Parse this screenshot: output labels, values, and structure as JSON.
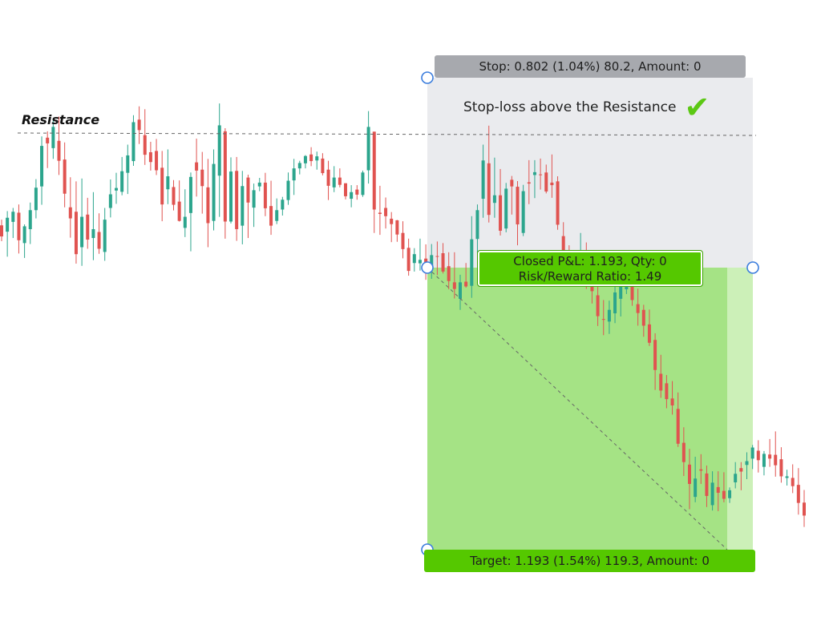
{
  "chart_data": {
    "type": "candlestick",
    "price_range": [
      1.08,
      1.28
    ],
    "colors": {
      "up": "#2ca58d",
      "down": "#e05350",
      "profit_zone": "#8edc66",
      "stop_zone": "#e6e7ea",
      "label_green": "#55c800"
    },
    "annotations": {
      "resistance_label": "Resistance",
      "note_text": "Stop-loss above the Resistance",
      "note_icon": "checkmark-icon",
      "stop_label": "Stop: 0.802 (1.04%) 80.2, Amount: 0",
      "pnl_label_line1": "Closed P&L: 1.193, Qty: 0",
      "pnl_label_line2": "Risk/Reward Ratio: 1.49",
      "target_label": "Target: 1.193 (1.54%) 119.3, Amount: 0"
    },
    "levels": {
      "resistance": 1.2424,
      "stop": 1.2476,
      "entry": 1.2184,
      "target": 1.1216
    },
    "candles": [
      [
        1.2088,
        1.2106,
        1.2038,
        1.2053
      ],
      [
        1.2068,
        1.2133,
        1.1989,
        1.2112
      ],
      [
        1.2099,
        1.2143,
        1.2048,
        1.2131
      ],
      [
        1.2128,
        1.2154,
        1.1999,
        1.2041
      ],
      [
        1.2032,
        1.2091,
        1.1985,
        1.2085
      ],
      [
        1.2076,
        1.216,
        1.2029,
        1.2136
      ],
      [
        1.2136,
        1.2234,
        1.211,
        1.2207
      ],
      [
        1.2211,
        1.2369,
        1.2153,
        1.2339
      ],
      [
        1.2365,
        1.2385,
        1.2269,
        1.2347
      ],
      [
        1.2332,
        1.2424,
        1.2298,
        1.2399
      ],
      [
        1.2355,
        1.2432,
        1.2247,
        1.2292
      ],
      [
        1.2296,
        1.235,
        1.2145,
        1.2188
      ],
      [
        1.2145,
        1.224,
        1.2049,
        1.211
      ],
      [
        1.2131,
        1.2227,
        1.1967,
        1.1997
      ],
      [
        1.2019,
        1.2236,
        1.196,
        1.2115
      ],
      [
        1.2122,
        1.2175,
        1.2014,
        1.2043
      ],
      [
        1.2048,
        1.2193,
        1.1978,
        1.2076
      ],
      [
        1.2067,
        1.2126,
        1.1998,
        1.2014
      ],
      [
        1.2004,
        1.2143,
        1.1976,
        1.2106
      ],
      [
        1.2143,
        1.2233,
        1.2113,
        1.2186
      ],
      [
        1.2198,
        1.2254,
        1.2156,
        1.2206
      ],
      [
        1.2194,
        1.2304,
        1.2183,
        1.2259
      ],
      [
        1.2254,
        1.2343,
        1.2187,
        1.2309
      ],
      [
        1.2291,
        1.2436,
        1.2276,
        1.2414
      ],
      [
        1.2422,
        1.2464,
        1.2345,
        1.2389
      ],
      [
        1.2373,
        1.2455,
        1.2279,
        1.2311
      ],
      [
        1.2319,
        1.2352,
        1.2261,
        1.2288
      ],
      [
        1.2323,
        1.2361,
        1.2247,
        1.2262
      ],
      [
        1.227,
        1.2323,
        1.2101,
        1.2154
      ],
      [
        1.2202,
        1.2328,
        1.2155,
        1.2243
      ],
      [
        1.2209,
        1.2231,
        1.2135,
        1.2153
      ],
      [
        1.2163,
        1.223,
        1.21,
        1.2102
      ],
      [
        1.208,
        1.2202,
        1.2051,
        1.2115
      ],
      [
        1.2127,
        1.2255,
        1.2006,
        1.2241
      ],
      [
        1.2287,
        1.2362,
        1.2179,
        1.2261
      ],
      [
        1.2264,
        1.232,
        1.2125,
        1.2212
      ],
      [
        1.2208,
        1.2298,
        1.2019,
        1.2095
      ],
      [
        1.2102,
        1.2328,
        1.2072,
        1.2282
      ],
      [
        1.2245,
        1.2473,
        1.2115,
        1.2404
      ],
      [
        1.2385,
        1.2395,
        1.2046,
        1.21
      ],
      [
        1.21,
        1.2303,
        1.2094,
        1.2258
      ],
      [
        1.226,
        1.2304,
        1.2039,
        1.2076
      ],
      [
        1.2087,
        1.226,
        1.2028,
        1.2212
      ],
      [
        1.2239,
        1.2248,
        1.2048,
        1.216
      ],
      [
        1.2144,
        1.222,
        1.2083,
        1.2199
      ],
      [
        1.2211,
        1.2238,
        1.2196,
        1.2223
      ],
      [
        1.2223,
        1.2254,
        1.2117,
        1.2142
      ],
      [
        1.2149,
        1.2229,
        1.2058,
        1.2087
      ],
      [
        1.2102,
        1.2173,
        1.2092,
        1.2136
      ],
      [
        1.2138,
        1.2178,
        1.2119,
        1.2169
      ],
      [
        1.2168,
        1.2255,
        1.2153,
        1.2229
      ],
      [
        1.223,
        1.2298,
        1.2184,
        1.2268
      ],
      [
        1.2268,
        1.2292,
        1.2249,
        1.2285
      ],
      [
        1.2284,
        1.231,
        1.2268,
        1.2307
      ],
      [
        1.2312,
        1.2335,
        1.2275,
        1.2291
      ],
      [
        1.2293,
        1.2321,
        1.2264,
        1.2306
      ],
      [
        1.2299,
        1.2316,
        1.2246,
        1.2253
      ],
      [
        1.2264,
        1.2292,
        1.2168,
        1.2213
      ],
      [
        1.2208,
        1.2275,
        1.2193,
        1.2239
      ],
      [
        1.2239,
        1.2268,
        1.2208,
        1.2216
      ],
      [
        1.2221,
        1.2221,
        1.217,
        1.218
      ],
      [
        1.2172,
        1.2215,
        1.2145,
        1.2193
      ],
      [
        1.2201,
        1.2215,
        1.2169,
        1.2185
      ],
      [
        1.2184,
        1.2261,
        1.2178,
        1.2255
      ],
      [
        1.2262,
        1.2449,
        1.222,
        1.2399
      ],
      [
        1.2384,
        1.2384,
        1.2064,
        1.2138
      ],
      [
        1.2128,
        1.2213,
        1.2058,
        1.2124
      ],
      [
        1.2143,
        1.2176,
        1.2078,
        1.2117
      ],
      [
        1.2109,
        1.213,
        1.2035,
        1.2092
      ],
      [
        1.2104,
        1.2105,
        1.2036,
        1.2059
      ],
      [
        1.2064,
        1.2101,
        1.1984,
        1.2013
      ],
      [
        1.2017,
        1.2046,
        1.1929,
        1.1944
      ],
      [
        1.1969,
        1.2016,
        1.1942,
        1.1997
      ],
      [
        1.1968,
        1.2046,
        1.1945,
        1.1979
      ],
      [
        1.1983,
        1.2028,
        1.1916,
        1.1961
      ],
      [
        1.196,
        1.2029,
        1.1919,
        1.1994
      ],
      [
        1.1991,
        1.2037,
        1.1931,
        1.199
      ],
      [
        1.2,
        1.2032,
        1.1936,
        1.1942
      ],
      [
        1.1959,
        1.2003,
        1.1886,
        1.1912
      ],
      [
        1.1908,
        1.2003,
        1.1857,
        1.1887
      ],
      [
        1.1856,
        1.1932,
        1.1821,
        1.1908
      ],
      [
        1.191,
        1.1969,
        1.1891,
        1.1895
      ],
      [
        1.1897,
        1.2117,
        1.1859,
        1.2044
      ],
      [
        1.2045,
        1.2154,
        1.2,
        1.2136
      ],
      [
        1.2172,
        1.2343,
        1.2112,
        1.2293
      ],
      [
        1.2284,
        1.2403,
        1.2097,
        1.2121
      ],
      [
        1.2159,
        1.2302,
        1.2112,
        1.2183
      ],
      [
        1.2183,
        1.2266,
        1.2056,
        1.2071
      ],
      [
        1.2078,
        1.2222,
        1.2066,
        1.2204
      ],
      [
        1.2232,
        1.2244,
        1.2122,
        1.2211
      ],
      [
        1.221,
        1.2228,
        1.2025,
        1.2091
      ],
      [
        1.2064,
        1.2216,
        1.2054,
        1.2196
      ],
      [
        1.2224,
        1.2294,
        1.2155,
        1.222
      ],
      [
        1.2247,
        1.2294,
        1.2174,
        1.2256
      ],
      [
        1.2249,
        1.2299,
        1.2201,
        1.2247
      ],
      [
        1.2255,
        1.228,
        1.2189,
        1.2195
      ],
      [
        1.2223,
        1.2312,
        1.2175,
        1.2215
      ],
      [
        1.2227,
        1.2243,
        1.2074,
        1.209
      ],
      [
        1.2054,
        1.2098,
        1.1957,
        1.1986
      ],
      [
        1.2001,
        1.2025,
        1.1917,
        1.1948
      ],
      [
        1.1956,
        1.2005,
        1.1942,
        1.1979
      ],
      [
        1.1991,
        1.2064,
        1.1946,
        1.1995
      ],
      [
        1.2004,
        1.2034,
        1.1887,
        1.1927
      ],
      [
        1.192,
        1.1988,
        1.1841,
        1.188
      ],
      [
        1.1867,
        1.1898,
        1.177,
        1.1801
      ],
      [
        1.1792,
        1.1852,
        1.1741,
        1.1791
      ],
      [
        1.1784,
        1.185,
        1.1745,
        1.1821
      ],
      [
        1.181,
        1.1904,
        1.1779,
        1.1876
      ],
      [
        1.1856,
        1.1918,
        1.18,
        1.1894
      ],
      [
        1.1886,
        1.1949,
        1.1871,
        1.1934
      ],
      [
        1.193,
        1.1939,
        1.1834,
        1.1852
      ],
      [
        1.1839,
        1.1888,
        1.1771,
        1.1811
      ],
      [
        1.1821,
        1.1837,
        1.1736,
        1.1771
      ],
      [
        1.1775,
        1.1822,
        1.1707,
        1.1717
      ],
      [
        1.1726,
        1.1747,
        1.1568,
        1.1631
      ],
      [
        1.1619,
        1.1679,
        1.1543,
        1.1566
      ],
      [
        1.1589,
        1.1615,
        1.151,
        1.1539
      ],
      [
        1.1541,
        1.1596,
        1.149,
        1.1519
      ],
      [
        1.1508,
        1.156,
        1.1388,
        1.1398
      ],
      [
        1.1401,
        1.145,
        1.1296,
        1.134
      ],
      [
        1.1332,
        1.1382,
        1.1191,
        1.1271
      ],
      [
        1.123,
        1.1357,
        1.1213,
        1.1288
      ],
      [
        1.1317,
        1.1365,
        1.1271,
        1.1313
      ],
      [
        1.1304,
        1.1329,
        1.1198,
        1.1233
      ],
      [
        1.1204,
        1.1311,
        1.1187,
        1.1275
      ],
      [
        1.1261,
        1.1311,
        1.1185,
        1.1243
      ],
      [
        1.1249,
        1.1308,
        1.1213,
        1.1224
      ],
      [
        1.1226,
        1.126,
        1.1211,
        1.1251
      ],
      [
        1.1276,
        1.134,
        1.1257,
        1.1303
      ],
      [
        1.1321,
        1.134,
        1.1251,
        1.131
      ],
      [
        1.1331,
        1.1371,
        1.1286,
        1.1343
      ],
      [
        1.1351,
        1.1394,
        1.1318,
        1.1386
      ],
      [
        1.1376,
        1.1409,
        1.1307,
        1.1346
      ],
      [
        1.1325,
        1.1375,
        1.1298,
        1.1366
      ],
      [
        1.1364,
        1.1413,
        1.1325,
        1.1351
      ],
      [
        1.1363,
        1.1437,
        1.1294,
        1.133
      ],
      [
        1.1349,
        1.1387,
        1.1275,
        1.1295
      ],
      [
        1.129,
        1.1316,
        1.1266,
        1.1295
      ],
      [
        1.129,
        1.1333,
        1.1242,
        1.1264
      ],
      [
        1.1268,
        1.1321,
        1.1174,
        1.1211
      ],
      [
        1.1212,
        1.1252,
        1.1135,
        1.1171
      ]
    ]
  }
}
